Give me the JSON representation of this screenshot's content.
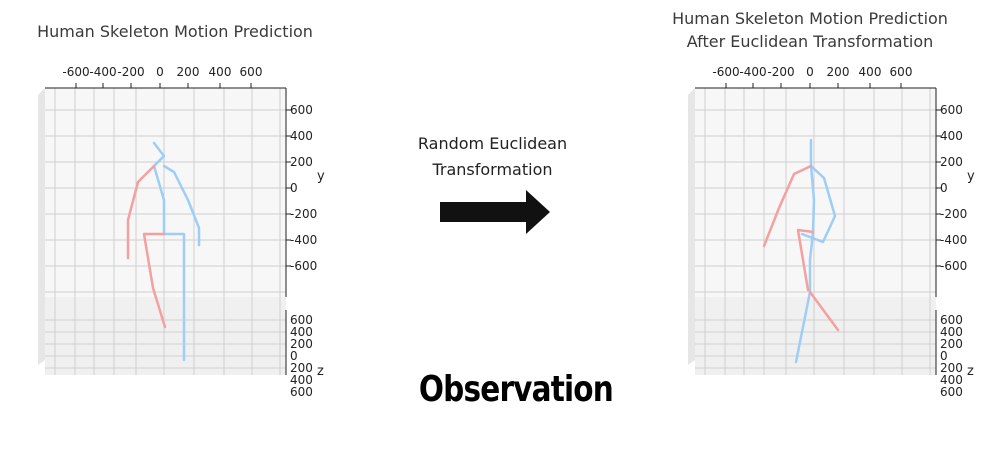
{
  "left_panel": {
    "title": "Human Skeleton Motion Prediction",
    "x_ticks": [
      "-600",
      "-400",
      "-200",
      "0",
      "200",
      "400",
      "600"
    ],
    "y_ticks": [
      "600",
      "400",
      "200",
      "0",
      "-200",
      "-400",
      "-600"
    ],
    "y_label": "y",
    "z_ticks": [
      "600",
      "400",
      "200",
      "0",
      "200",
      "400",
      "600"
    ],
    "z_label": "z"
  },
  "right_panel": {
    "title_line1": "Human Skeleton Motion Prediction",
    "title_line2": "After Euclidean Transformation",
    "x_ticks": [
      "-600",
      "-400",
      "-200",
      "0",
      "200",
      "400",
      "600"
    ],
    "y_ticks": [
      "600",
      "400",
      "200",
      "0",
      "-200",
      "-400",
      "-600"
    ],
    "y_label": "y",
    "z_ticks": [
      "600",
      "400",
      "200",
      "0",
      "200",
      "400",
      "600"
    ],
    "z_label": "z"
  },
  "transform_label_line1": "Random Euclidean",
  "transform_label_line2": "Transformation",
  "arrow_icon": "right-arrow-icon",
  "footer_label": "Observation",
  "colors": {
    "left_limb": "#f4a0a0",
    "right_limb": "#9ecdf7",
    "grid": "#c8c8c8",
    "pane": "#f2f2f2"
  }
}
